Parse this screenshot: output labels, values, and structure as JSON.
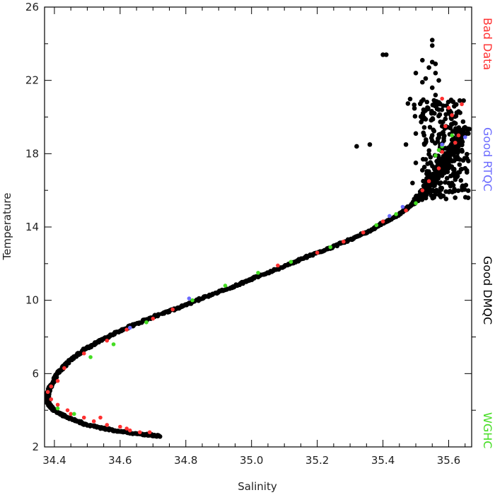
{
  "chart_data": {
    "type": "scatter",
    "xlabel": "Salinity",
    "ylabel": "Temperature",
    "xlim": [
      34.37,
      35.67
    ],
    "ylim": [
      2,
      26
    ],
    "x_ticks": [
      "34.4",
      "34.6",
      "34.8",
      "35.0",
      "35.2",
      "35.4",
      "35.6"
    ],
    "x_tick_values": [
      34.4,
      34.6,
      34.8,
      35.0,
      35.2,
      35.4,
      35.6
    ],
    "y_ticks": [
      "2",
      "6",
      "10",
      "14",
      "18",
      "22",
      "26"
    ],
    "y_tick_values": [
      2,
      6,
      10,
      14,
      18,
      22,
      26
    ],
    "grid": false,
    "legend_placement": "right-vertical",
    "series": [
      {
        "name": "Bad Data",
        "color": "#ff3030",
        "points": [
          [
            34.38,
            5.0
          ],
          [
            34.39,
            4.6
          ],
          [
            34.39,
            5.3
          ],
          [
            34.41,
            5.6
          ],
          [
            34.41,
            4.3
          ],
          [
            34.44,
            4.0
          ],
          [
            34.45,
            3.8
          ],
          [
            34.49,
            3.6
          ],
          [
            34.52,
            3.4
          ],
          [
            34.56,
            3.2
          ],
          [
            34.6,
            3.1
          ],
          [
            34.63,
            2.9
          ],
          [
            34.66,
            2.8
          ],
          [
            34.69,
            2.8
          ],
          [
            34.62,
            3.0
          ],
          [
            34.54,
            3.6
          ],
          [
            34.43,
            6.3
          ],
          [
            34.49,
            7.1
          ],
          [
            34.56,
            7.8
          ],
          [
            34.62,
            8.4
          ],
          [
            34.7,
            9.0
          ],
          [
            34.76,
            9.5
          ],
          [
            35.08,
            11.9
          ],
          [
            35.2,
            12.6
          ],
          [
            35.28,
            13.2
          ],
          [
            35.34,
            13.7
          ],
          [
            35.4,
            14.3
          ],
          [
            35.47,
            14.9
          ],
          [
            35.52,
            16.0
          ],
          [
            35.54,
            16.5
          ],
          [
            35.57,
            17.2
          ],
          [
            35.58,
            18.1
          ],
          [
            35.59,
            19.5
          ],
          [
            35.6,
            20.5
          ],
          [
            35.58,
            21.0
          ],
          [
            35.61,
            20.1
          ],
          [
            35.63,
            19.0
          ],
          [
            35.62,
            18.6
          ],
          [
            35.64,
            20.7
          ],
          [
            35.67,
            22.4
          ]
        ]
      },
      {
        "name": "Good RTQC",
        "color": "#6b6bff",
        "points": [
          [
            34.63,
            8.5
          ],
          [
            34.81,
            10.1
          ],
          [
            35.46,
            15.1
          ],
          [
            35.58,
            18.5
          ],
          [
            35.65,
            18.9
          ],
          [
            35.42,
            14.6
          ]
        ]
      },
      {
        "name": "Good DMQC",
        "color": "#000000",
        "curve": [
          [
            34.72,
            2.6
          ],
          [
            34.66,
            2.7
          ],
          [
            34.58,
            2.9
          ],
          [
            34.5,
            3.2
          ],
          [
            34.44,
            3.6
          ],
          [
            34.4,
            4.0
          ],
          [
            34.38,
            4.4
          ],
          [
            34.38,
            4.9
          ],
          [
            34.39,
            5.4
          ],
          [
            34.41,
            6.0
          ],
          [
            34.44,
            6.6
          ],
          [
            34.49,
            7.3
          ],
          [
            34.55,
            7.9
          ],
          [
            34.62,
            8.5
          ],
          [
            34.7,
            9.1
          ],
          [
            34.78,
            9.6
          ],
          [
            34.86,
            10.2
          ],
          [
            34.94,
            10.7
          ],
          [
            35.02,
            11.3
          ],
          [
            35.09,
            11.8
          ],
          [
            35.16,
            12.3
          ],
          [
            35.23,
            12.8
          ],
          [
            35.3,
            13.3
          ],
          [
            35.36,
            13.8
          ],
          [
            35.41,
            14.3
          ],
          [
            35.46,
            14.8
          ],
          [
            35.5,
            15.4
          ],
          [
            35.53,
            16.0
          ],
          [
            35.55,
            16.5
          ],
          [
            35.57,
            17.0
          ],
          [
            35.59,
            17.6
          ],
          [
            35.61,
            18.2
          ],
          [
            35.63,
            18.9
          ],
          [
            35.65,
            19.4
          ]
        ],
        "outliers": [
          [
            35.32,
            18.4
          ],
          [
            35.36,
            18.5
          ],
          [
            35.41,
            23.4
          ],
          [
            35.4,
            23.4
          ],
          [
            35.47,
            18.5
          ],
          [
            35.55,
            24.2
          ],
          [
            35.55,
            23.9
          ],
          [
            35.55,
            23.0
          ],
          [
            35.56,
            22.9
          ],
          [
            35.54,
            22.7
          ],
          [
            35.56,
            22.4
          ],
          [
            35.52,
            21.9
          ],
          [
            35.57,
            22.0
          ],
          [
            35.53,
            22.1
          ],
          [
            35.55,
            21.6
          ],
          [
            35.5,
            22.4
          ],
          [
            35.52,
            23.1
          ],
          [
            35.56,
            21.2
          ],
          [
            35.57,
            20.8
          ],
          [
            35.6,
            20.4
          ],
          [
            35.59,
            19.9
          ],
          [
            35.61,
            19.6
          ],
          [
            35.62,
            19.2
          ],
          [
            35.58,
            19.5
          ],
          [
            35.55,
            19.0
          ],
          [
            35.63,
            18.6
          ],
          [
            35.64,
            18.2
          ],
          [
            35.66,
            19.1
          ],
          [
            35.66,
            17.6
          ],
          [
            35.62,
            17.8
          ],
          [
            35.65,
            17.2
          ],
          [
            35.5,
            17.5
          ],
          [
            35.52,
            17.1
          ],
          [
            35.49,
            16.4
          ],
          [
            35.55,
            18.7
          ],
          [
            35.6,
            17.4
          ],
          [
            35.58,
            16.8
          ],
          [
            35.61,
            16.4
          ],
          [
            35.59,
            18.3
          ],
          [
            35.57,
            20.4
          ],
          [
            35.52,
            20.1
          ],
          [
            35.5,
            19.1
          ],
          [
            35.53,
            18.6
          ],
          [
            35.57,
            17.7
          ],
          [
            35.63,
            20.3
          ]
        ]
      },
      {
        "name": "WGHC",
        "color": "#44dd22",
        "points": [
          [
            34.41,
            4.1
          ],
          [
            34.46,
            3.8
          ],
          [
            34.51,
            6.9
          ],
          [
            34.58,
            7.6
          ],
          [
            34.68,
            8.8
          ],
          [
            34.82,
            10.0
          ],
          [
            34.92,
            10.8
          ],
          [
            35.02,
            11.5
          ],
          [
            35.12,
            12.1
          ],
          [
            35.24,
            12.9
          ],
          [
            35.38,
            14.1
          ],
          [
            35.44,
            14.7
          ],
          [
            35.5,
            15.3
          ],
          [
            35.57,
            18.2
          ],
          [
            35.58,
            18.4
          ],
          [
            35.61,
            19.0
          ],
          [
            35.56,
            17.9
          ]
        ]
      }
    ]
  }
}
